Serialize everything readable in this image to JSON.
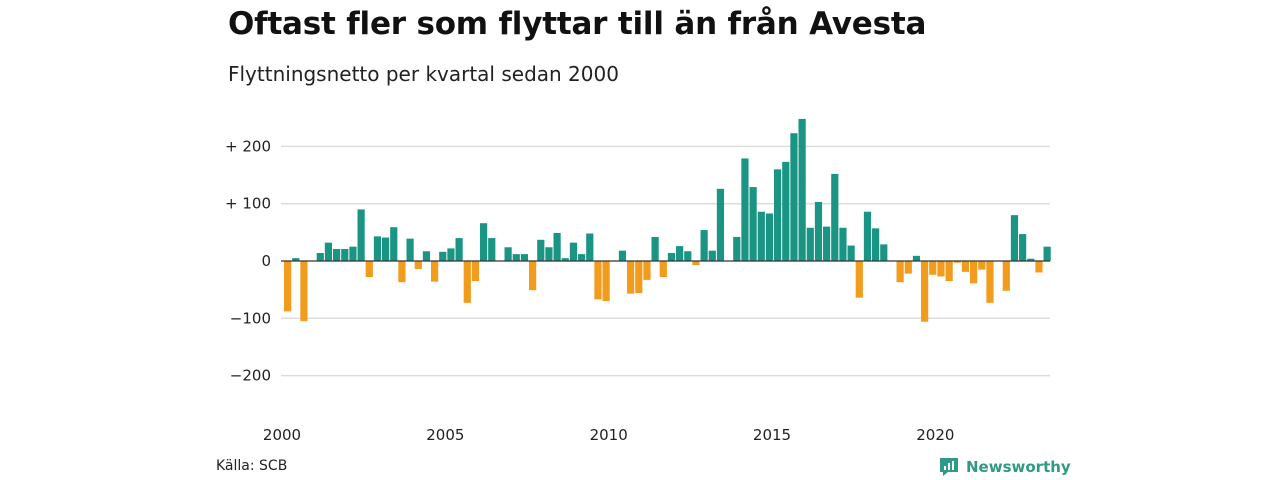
{
  "title": "Oftast fler som flyttar till än från Avesta",
  "subtitle": "Flyttningsnetto per kvartal sedan 2000",
  "source": "Källa: SCB",
  "brand": "Newsworthy",
  "colors": {
    "positive": "#1a9584",
    "negative": "#f29c1e",
    "grid": "#dddddd",
    "zero_line": "#333333"
  },
  "chart_data": {
    "type": "bar",
    "title": "Oftast fler som flyttar till än från Avesta",
    "subtitle": "Flyttningsnetto per kvartal sedan 2000",
    "x_start": "2000Q1",
    "x_tick_labels": [
      "2000",
      "2005",
      "2010",
      "2015",
      "2020"
    ],
    "y_tick_labels": [
      "+ 200",
      "+ 100",
      "0",
      "−100",
      "−200"
    ],
    "y_ticks": [
      200,
      100,
      0,
      -100,
      -200
    ],
    "ylim": [
      -230,
      250
    ],
    "grid": true,
    "values": [
      -88,
      5,
      -105,
      0,
      14,
      32,
      21,
      21,
      25,
      90,
      -28,
      43,
      41,
      59,
      -37,
      39,
      -14,
      17,
      -36,
      16,
      22,
      40,
      -73,
      -35,
      66,
      40,
      0,
      24,
      12,
      12,
      -51,
      37,
      24,
      49,
      5,
      32,
      12,
      48,
      -67,
      -70,
      -1,
      18,
      -57,
      -56,
      -33,
      42,
      -28,
      14,
      26,
      17,
      -7,
      54,
      18,
      126,
      0,
      42,
      179,
      129,
      86,
      83,
      160,
      173,
      223,
      248,
      58,
      103,
      60,
      152,
      58,
      27,
      -64,
      86,
      57,
      29,
      0,
      -37,
      -22,
      9,
      -106,
      -24,
      -27,
      -35,
      -3,
      -19,
      -39,
      -15,
      -73,
      0,
      -52,
      80,
      47,
      4,
      -20,
      25
    ]
  }
}
